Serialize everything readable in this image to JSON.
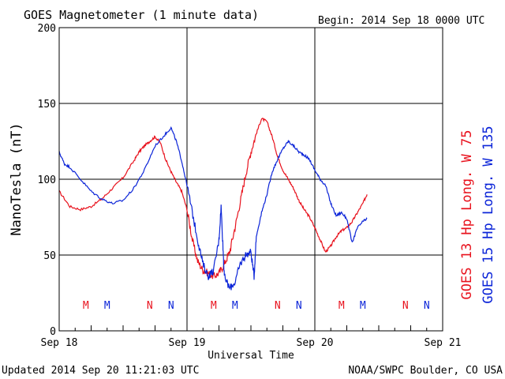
{
  "header": {
    "title": "GOES Magnetometer (1 minute data)",
    "begin": "Begin:  2014 Sep 18 0000 UTC"
  },
  "footer": {
    "updated": "Updated 2014 Sep 20 11:21:03 UTC",
    "credit": "NOAA/SWPC Boulder, CO USA"
  },
  "chart_data": {
    "type": "line",
    "title": "GOES Magnetometer (1 minute data)",
    "xlabel": "Universal Time",
    "ylabel": "NanoTesla (nT)",
    "xlim": [
      0,
      72
    ],
    "ylim": [
      0,
      200
    ],
    "x_unit": "hours since 2014 Sep 18 0000 UTC",
    "x_ticks": [
      {
        "x": 0,
        "label": "Sep 18"
      },
      {
        "x": 24,
        "label": "Sep 19"
      },
      {
        "x": 48,
        "label": "Sep 20"
      },
      {
        "x": 72,
        "label": "Sep 21"
      }
    ],
    "y_ticks": [
      0,
      50,
      100,
      150,
      200
    ],
    "grid": true,
    "series": [
      {
        "name": "GOES 13 Hp  Long. W 75",
        "color": "#e8121d",
        "points": [
          [
            0,
            92
          ],
          [
            2,
            82
          ],
          [
            4,
            80
          ],
          [
            6,
            82
          ],
          [
            8,
            87
          ],
          [
            10,
            94
          ],
          [
            12,
            101
          ],
          [
            14,
            112
          ],
          [
            15,
            118
          ],
          [
            16,
            122
          ],
          [
            17,
            125
          ],
          [
            18,
            128
          ],
          [
            19,
            124
          ],
          [
            20,
            113
          ],
          [
            21,
            105
          ],
          [
            22,
            98
          ],
          [
            23,
            92
          ],
          [
            24,
            80
          ],
          [
            25,
            60
          ],
          [
            26,
            46
          ],
          [
            27,
            40
          ],
          [
            28,
            38
          ],
          [
            29,
            36
          ],
          [
            30,
            38
          ],
          [
            31,
            44
          ],
          [
            32,
            52
          ],
          [
            33,
            68
          ],
          [
            34,
            85
          ],
          [
            35,
            103
          ],
          [
            36,
            118
          ],
          [
            37,
            130
          ],
          [
            38,
            140
          ],
          [
            39,
            138
          ],
          [
            40,
            128
          ],
          [
            41,
            115
          ],
          [
            42,
            106
          ],
          [
            43,
            100
          ],
          [
            44,
            94
          ],
          [
            45,
            86
          ],
          [
            46,
            80
          ],
          [
            47,
            75
          ],
          [
            48,
            68
          ],
          [
            49,
            60
          ],
          [
            50,
            52
          ],
          [
            51,
            56
          ],
          [
            52,
            62
          ],
          [
            53,
            66
          ],
          [
            54,
            68
          ],
          [
            55,
            72
          ],
          [
            56,
            78
          ],
          [
            57,
            84
          ],
          [
            57.8,
            90
          ]
        ],
        "markers": [
          {
            "x": 5,
            "label": "M"
          },
          {
            "x": 17,
            "label": "N"
          },
          {
            "x": 29,
            "label": "M"
          },
          {
            "x": 41,
            "label": "N"
          },
          {
            "x": 53,
            "label": "M"
          },
          {
            "x": 65,
            "label": "N"
          }
        ]
      },
      {
        "name": "GOES 15 Hp  Long. W 135",
        "color": "#0b24d8",
        "points": [
          [
            0,
            118
          ],
          [
            1,
            110
          ],
          [
            2,
            108
          ],
          [
            4,
            100
          ],
          [
            6,
            92
          ],
          [
            8,
            87
          ],
          [
            10,
            84
          ],
          [
            12,
            86
          ],
          [
            14,
            94
          ],
          [
            16,
            106
          ],
          [
            18,
            122
          ],
          [
            20,
            130
          ],
          [
            21,
            134
          ],
          [
            22,
            125
          ],
          [
            23,
            112
          ],
          [
            24,
            96
          ],
          [
            25,
            78
          ],
          [
            26,
            60
          ],
          [
            27,
            44
          ],
          [
            28,
            36
          ],
          [
            29,
            40
          ],
          [
            30,
            60
          ],
          [
            30.4,
            82
          ],
          [
            30.8,
            52
          ],
          [
            31,
            36
          ],
          [
            32,
            28
          ],
          [
            33,
            32
          ],
          [
            34,
            44
          ],
          [
            35,
            50
          ],
          [
            36,
            52
          ],
          [
            36.6,
            36
          ],
          [
            37,
            62
          ],
          [
            38,
            78
          ],
          [
            39,
            90
          ],
          [
            40,
            105
          ],
          [
            41,
            113
          ],
          [
            42,
            120
          ],
          [
            43,
            125
          ],
          [
            44,
            122
          ],
          [
            45,
            118
          ],
          [
            46,
            116
          ],
          [
            47,
            113
          ],
          [
            48,
            106
          ],
          [
            49,
            100
          ],
          [
            50,
            96
          ],
          [
            51,
            84
          ],
          [
            52,
            76
          ],
          [
            53,
            78
          ],
          [
            54,
            74
          ],
          [
            55,
            58
          ],
          [
            56,
            68
          ],
          [
            57,
            72
          ],
          [
            57.8,
            74
          ]
        ],
        "markers": [
          {
            "x": 9,
            "label": "M"
          },
          {
            "x": 21,
            "label": "N"
          },
          {
            "x": 33,
            "label": "M"
          },
          {
            "x": 45,
            "label": "N"
          },
          {
            "x": 57,
            "label": "M"
          },
          {
            "x": 69,
            "label": "N"
          }
        ]
      }
    ]
  }
}
